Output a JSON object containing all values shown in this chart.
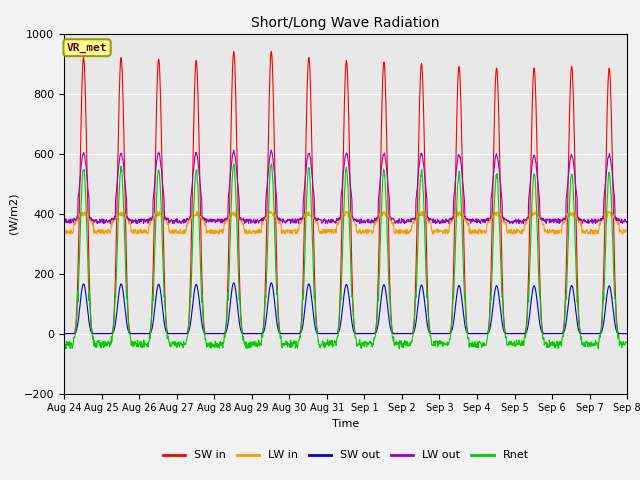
{
  "title": "Short/Long Wave Radiation",
  "ylabel": "(W/m2)",
  "xlabel": "Time",
  "ylim": [
    -200,
    1000
  ],
  "plot_bg": "#e8e8e8",
  "fig_bg": "#f2f2f2",
  "legend_label": "VR_met",
  "series_names": [
    "SW in",
    "LW in",
    "SW out",
    "LW out",
    "Rnet"
  ],
  "series_colors": [
    "#ff0000",
    "#ff9900",
    "#0000dd",
    "#9900cc",
    "#00cc00"
  ],
  "xtick_labels": [
    "Aug 24",
    "Aug 25",
    "Aug 26",
    "Aug 27",
    "Aug 28",
    "Aug 29",
    "Aug 30",
    "Aug 31",
    "Sep 1",
    "Sep 2",
    "Sep 3",
    "Sep 4",
    "Sep 5",
    "Sep 6",
    "Sep 7",
    "Sep 8"
  ],
  "n_days": 15,
  "pts_per_day": 96,
  "sw_in_peaks": [
    920,
    920,
    915,
    910,
    940,
    940,
    920,
    910,
    905,
    900,
    890,
    885,
    885,
    890,
    885
  ]
}
